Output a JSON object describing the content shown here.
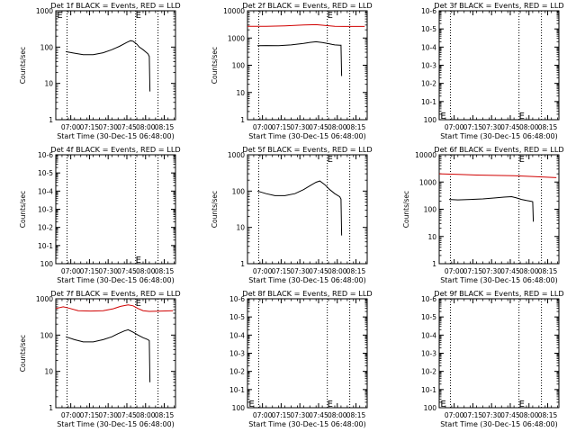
{
  "chart_data": [
    {
      "type": "line",
      "title": "Det 1f BLACK = Events, RED = LLD",
      "xlabel": "Start Time (30-Dec-15 06:48:00)",
      "ylabel": "Counts/sec",
      "y_scale": "log",
      "ylim": [
        1,
        1000
      ],
      "y_ticks": [
        "1",
        "10",
        "100",
        "1000"
      ],
      "x_ticks": [
        "07:00",
        "07:15",
        "07:30",
        "07:45",
        "08:00",
        "08:15"
      ],
      "x_minutes": [
        12,
        27,
        42,
        57,
        72,
        87
      ],
      "xlim_minutes": [
        0,
        96
      ],
      "markers": [
        {
          "minute": 1,
          "label": "E",
          "y": 1000
        },
        {
          "minute": 64,
          "label": "E",
          "y": 1000
        }
      ],
      "vlines_minutes": [
        9,
        64,
        82
      ],
      "series": [
        {
          "color": "#000000",
          "x": [
            8,
            15,
            22,
            30,
            38,
            45,
            51,
            57,
            60,
            62,
            65,
            67,
            70,
            74,
            75,
            75.5
          ],
          "values": [
            75,
            68,
            62,
            62,
            70,
            85,
            105,
            135,
            150,
            145,
            120,
            100,
            85,
            65,
            55,
            6
          ]
        }
      ]
    },
    {
      "type": "line",
      "title": "Det 2f BLACK = Events, RED = LLD",
      "xlabel": "Start Time (30-Dec-15 06:48:00)",
      "ylabel": "Counts/sec",
      "y_scale": "log",
      "ylim": [
        1,
        10000
      ],
      "y_ticks": [
        "1",
        "10",
        "100",
        "1000",
        "10000"
      ],
      "x_ticks": [
        "07:00",
        "07:15",
        "07:30",
        "07:45",
        "08:00",
        "08:15"
      ],
      "x_minutes": [
        12,
        27,
        42,
        57,
        72,
        87
      ],
      "xlim_minutes": [
        0,
        96
      ],
      "markers": [
        {
          "minute": 64,
          "label": "E",
          "y": 10000
        }
      ],
      "vlines_minutes": [
        9,
        64,
        82
      ],
      "series": [
        {
          "color": "#d00000",
          "x": [
            0,
            15,
            30,
            45,
            55,
            62,
            70,
            80,
            94
          ],
          "values": [
            2700,
            2700,
            2800,
            3000,
            3100,
            2900,
            2700,
            2650,
            2650
          ]
        },
        {
          "color": "#000000",
          "x": [
            8,
            15,
            25,
            35,
            45,
            50,
            55,
            60,
            65,
            68,
            70,
            74,
            75,
            75.5
          ],
          "values": [
            520,
            530,
            520,
            560,
            630,
            690,
            730,
            680,
            620,
            580,
            560,
            540,
            540,
            40
          ]
        }
      ]
    },
    {
      "type": "line",
      "title": "Det 3f BLACK = Events, RED = LLD",
      "xlabel": "Start Time (30-Dec-15 06:48:00)",
      "ylabel": "",
      "y_scale": "log",
      "ylim_exp": [
        0,
        -6
      ],
      "y_ticks": [
        "10-6",
        "10-5",
        "10-4",
        "10-3",
        "10-2",
        "10-1",
        "100"
      ],
      "x_ticks": [
        "07:00",
        "07:15",
        "07:30",
        "07:45",
        "08:00",
        "08:15"
      ],
      "x_minutes": [
        12,
        27,
        42,
        57,
        72,
        87
      ],
      "xlim_minutes": [
        0,
        96
      ],
      "markers": [
        {
          "minute": 1,
          "label": "E",
          "y": 1
        },
        {
          "minute": 64,
          "label": "E",
          "y": 1
        }
      ],
      "vlines_minutes": [
        9,
        64,
        82
      ],
      "series": []
    },
    {
      "type": "line",
      "title": "Det 4f BLACK = Events, RED = LLD",
      "xlabel": "Start Time (30-Dec-15 06:48:00)",
      "ylabel": "Counts/sec",
      "y_scale": "log",
      "ylim_exp": [
        0,
        -6
      ],
      "y_ticks": [
        "10-6",
        "10-5",
        "10-4",
        "10-3",
        "10-2",
        "10-1",
        "100"
      ],
      "x_ticks": [
        "07:00",
        "07:15",
        "07:30",
        "07:45",
        "08:00",
        "08:15"
      ],
      "x_minutes": [
        12,
        27,
        42,
        57,
        72,
        87
      ],
      "xlim_minutes": [
        0,
        96
      ],
      "markers": [
        {
          "minute": 64,
          "label": "E",
          "y": 1
        }
      ],
      "vlines_minutes": [
        9,
        64,
        82
      ],
      "series": []
    },
    {
      "type": "line",
      "title": "Det 5f BLACK = Events, RED = LLD",
      "xlabel": "Start Time (30-Dec-15 06:48:00)",
      "ylabel": "Counts/sec",
      "y_scale": "log",
      "ylim": [
        1,
        1000
      ],
      "y_ticks": [
        "1",
        "10",
        "100",
        "1000"
      ],
      "x_ticks": [
        "07:00",
        "07:15",
        "07:30",
        "07:45",
        "08:00",
        "08:15"
      ],
      "x_minutes": [
        12,
        27,
        42,
        57,
        72,
        87
      ],
      "xlim_minutes": [
        0,
        96
      ],
      "markers": [
        {
          "minute": 64,
          "label": "E",
          "y": 1000
        }
      ],
      "vlines_minutes": [
        9,
        64,
        82
      ],
      "series": [
        {
          "color": "#000000",
          "x": [
            8,
            15,
            22,
            30,
            38,
            45,
            50,
            55,
            58,
            62,
            66,
            70,
            74,
            75,
            75.5
          ],
          "values": [
            100,
            85,
            75,
            75,
            85,
            110,
            140,
            175,
            190,
            150,
            110,
            85,
            70,
            60,
            6
          ]
        }
      ]
    },
    {
      "type": "line",
      "title": "Det 6f BLACK = Events, RED = LLD",
      "xlabel": "Start Time (30-Dec-15 06:48:00)",
      "ylabel": "Counts/sec",
      "y_scale": "log",
      "ylim": [
        1,
        10000
      ],
      "y_ticks": [
        "1",
        "10",
        "100",
        "1000",
        "10000"
      ],
      "x_ticks": [
        "07:00",
        "07:15",
        "07:30",
        "07:45",
        "08:00",
        "08:15"
      ],
      "x_minutes": [
        12,
        27,
        42,
        57,
        72,
        87
      ],
      "xlim_minutes": [
        0,
        96
      ],
      "markers": [
        {
          "minute": 64,
          "label": "E",
          "y": 10000
        }
      ],
      "vlines_minutes": [
        9,
        64,
        82
      ],
      "series": [
        {
          "color": "#d00000",
          "x": [
            0,
            15,
            30,
            45,
            60,
            75,
            94
          ],
          "values": [
            2000,
            1900,
            1800,
            1750,
            1700,
            1600,
            1450
          ]
        },
        {
          "color": "#000000",
          "x": [
            8,
            15,
            25,
            35,
            45,
            52,
            58,
            62,
            66,
            70,
            74,
            75,
            75.5
          ],
          "values": [
            230,
            220,
            230,
            240,
            260,
            280,
            290,
            260,
            230,
            210,
            195,
            190,
            35
          ]
        }
      ]
    },
    {
      "type": "line",
      "title": "Det 7f BLACK = Events, RED = LLD",
      "xlabel": "Start Time (30-Dec-15 06:48:00)",
      "ylabel": "Counts/sec",
      "y_scale": "log",
      "ylim": [
        1,
        1000
      ],
      "y_ticks": [
        "1",
        "10",
        "100",
        "1000"
      ],
      "x_ticks": [
        "07:00",
        "07:15",
        "07:30",
        "07:45",
        "08:00",
        "08:15"
      ],
      "x_minutes": [
        12,
        27,
        42,
        57,
        72,
        87
      ],
      "xlim_minutes": [
        0,
        96
      ],
      "markers": [
        {
          "minute": 64,
          "label": "E",
          "y": 1000
        }
      ],
      "vlines_minutes": [
        9,
        64,
        82
      ],
      "series": [
        {
          "color": "#d00000",
          "x": [
            0,
            6,
            10,
            18,
            28,
            38,
            46,
            52,
            58,
            62,
            66,
            70,
            75,
            85,
            94
          ],
          "values": [
            540,
            600,
            560,
            470,
            460,
            470,
            530,
            620,
            680,
            640,
            540,
            470,
            450,
            460,
            470
          ]
        },
        {
          "color": "#000000",
          "x": [
            8,
            15,
            22,
            30,
            38,
            45,
            50,
            55,
            58,
            62,
            66,
            70,
            74,
            75,
            75.5
          ],
          "values": [
            90,
            75,
            65,
            65,
            75,
            90,
            110,
            130,
            140,
            120,
            100,
            85,
            75,
            70,
            5
          ]
        }
      ]
    },
    {
      "type": "line",
      "title": "Det 8f BLACK = Events, RED = LLD",
      "xlabel": "Start Time (30-Dec-15 06:48:00)",
      "ylabel": "",
      "y_scale": "log",
      "ylim_exp": [
        0,
        -6
      ],
      "y_ticks": [
        "10-6",
        "10-5",
        "10-4",
        "10-3",
        "10-2",
        "10-1",
        "100"
      ],
      "x_ticks": [
        "07:00",
        "07:15",
        "07:30",
        "07:45",
        "08:00",
        "08:15"
      ],
      "x_minutes": [
        12,
        27,
        42,
        57,
        72,
        87
      ],
      "xlim_minutes": [
        0,
        96
      ],
      "markers": [
        {
          "minute": 1,
          "label": "E",
          "y": 1
        },
        {
          "minute": 64,
          "label": "E",
          "y": 1
        }
      ],
      "vlines_minutes": [
        9,
        64,
        82
      ],
      "series": []
    },
    {
      "type": "line",
      "title": "Det 9f BLACK = Events, RED = LLD",
      "xlabel": "Start Time (30-Dec-15 06:48:00)",
      "ylabel": "",
      "y_scale": "log",
      "ylim_exp": [
        0,
        -6
      ],
      "y_ticks": [
        "10-6",
        "10-5",
        "10-4",
        "10-3",
        "10-2",
        "10-1",
        "100"
      ],
      "x_ticks": [
        "07:00",
        "07:15",
        "07:30",
        "07:45",
        "08:00",
        "08:15"
      ],
      "x_minutes": [
        12,
        27,
        42,
        57,
        72,
        87
      ],
      "xlim_minutes": [
        0,
        96
      ],
      "markers": [
        {
          "minute": 1,
          "label": "E",
          "y": 1
        },
        {
          "minute": 64,
          "label": "E",
          "y": 1
        }
      ],
      "vlines_minutes": [
        9,
        64,
        82
      ],
      "series": []
    }
  ]
}
